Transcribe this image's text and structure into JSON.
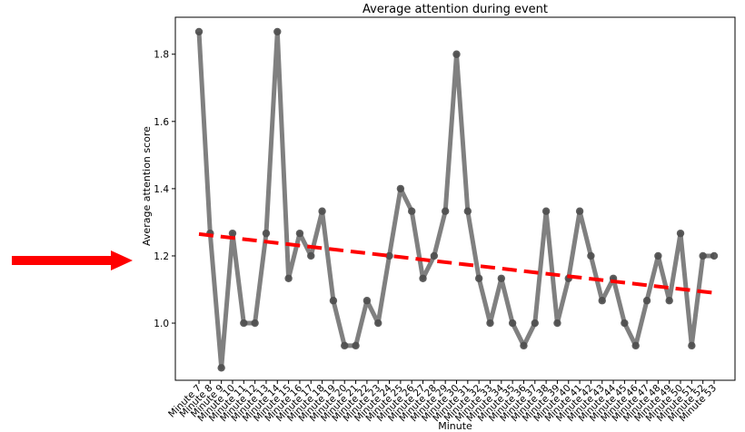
{
  "chart_data": {
    "type": "line",
    "title": "Average attention during event",
    "xlabel": "Minute",
    "ylabel": "Average attention score",
    "categories": [
      "Minute 7",
      "Minute 8",
      "Minute 9",
      "Minute 10",
      "Minute 11",
      "Minute 12",
      "Minute 13",
      "Minute 14",
      "Minute 15",
      "Minute 16",
      "Minute 17",
      "Minute 18",
      "Minute 19",
      "Minute 20",
      "Minute 21",
      "Minute 22",
      "Minute 23",
      "Minute 24",
      "Minute 25",
      "Minute 26",
      "Minute 27",
      "Minute 28",
      "Minute 29",
      "Minute 30",
      "Minute 31",
      "Minute 32",
      "Minute 33",
      "Minute 34",
      "Minute 35",
      "Minute 36",
      "Minute 37",
      "Minute 38",
      "Minute 39",
      "Minute 40",
      "Minute 41",
      "Minute 42",
      "Minute 43",
      "Minute 44",
      "Minute 45",
      "Minute 46",
      "Minute 47",
      "Minute 48",
      "Minute 49",
      "Minute 50",
      "Minute 51",
      "Minute 52",
      "Minute 53"
    ],
    "values": [
      1.867,
      1.267,
      0.867,
      1.267,
      1.0,
      1.0,
      1.267,
      1.867,
      1.133,
      1.267,
      1.2,
      1.333,
      1.067,
      0.933,
      0.933,
      1.067,
      1.0,
      1.2,
      1.4,
      1.333,
      1.133,
      1.2,
      1.333,
      1.8,
      1.333,
      1.133,
      1.0,
      1.133,
      1.0,
      0.933,
      1.0,
      1.333,
      1.0,
      1.133,
      1.333,
      1.2,
      1.067,
      1.133,
      1.0,
      0.933,
      1.067,
      1.2,
      1.067,
      1.267,
      0.933,
      1.2,
      1.2
    ],
    "trend": {
      "start": 1.265,
      "end": 1.09
    },
    "yticks": [
      1.0,
      1.2,
      1.4,
      1.6,
      1.8
    ],
    "ylim": [
      0.83,
      1.91
    ],
    "grid": false,
    "colors": {
      "line": "#808080",
      "marker": "#4d4d4d",
      "trend": "#ff0000",
      "arrow": "#ff0000"
    }
  }
}
